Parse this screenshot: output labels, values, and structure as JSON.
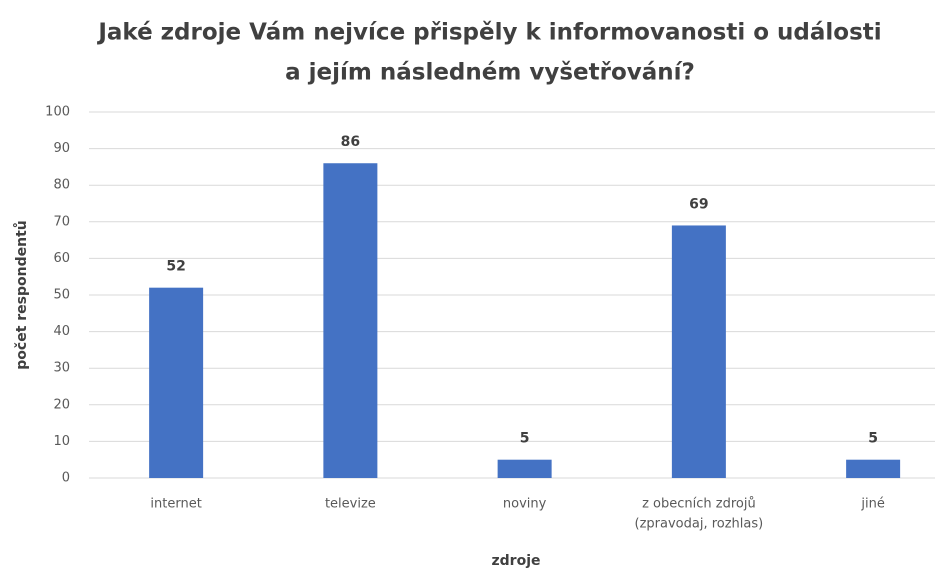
{
  "chart_data": {
    "type": "bar",
    "title": [
      "Jaké zdroje Vám nejvíce přispěly k informovanosti o události",
      "a jejím následném vyšetřování?"
    ],
    "x_label": "zdroje",
    "y_label": "počet respondentů",
    "categories": [
      "internet",
      "televize",
      "noviny",
      [
        "z obecních zdrojů",
        "(zpravodaj, rozhlas)"
      ],
      "jiné"
    ],
    "values": [
      52,
      86,
      5,
      69,
      5
    ],
    "color": "#4472c4",
    "ylim": [
      0,
      100
    ],
    "yticks": [
      0,
      10,
      20,
      30,
      40,
      50,
      60,
      70,
      80,
      90,
      100
    ],
    "grid": true
  }
}
